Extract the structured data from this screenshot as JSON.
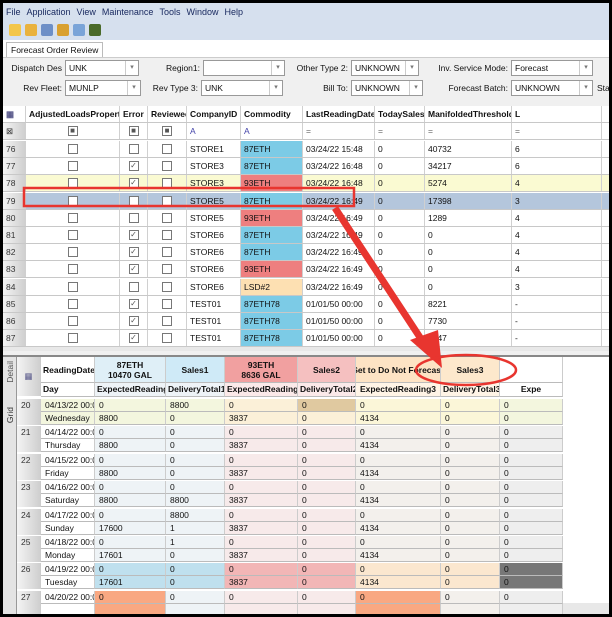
{
  "menu": [
    "File",
    "Application",
    "View",
    "Maintenance",
    "Tools",
    "Window",
    "Help"
  ],
  "toolbar_icons": [
    "new-icon",
    "open-icon",
    "save-icon",
    "export-icon",
    "refresh-icon",
    "exit-icon"
  ],
  "tab": "Forecast Order Review",
  "filters": {
    "row1": [
      {
        "label": "Dispatch Des",
        "value": "UNK"
      },
      {
        "label": "Region1:",
        "value": ""
      },
      {
        "label": "Other Type 2:",
        "value": "UNKNOWN"
      },
      {
        "label": "Inv. Service Mode:",
        "value": "Forecast"
      }
    ],
    "row2": [
      {
        "label": "Rev Fleet:",
        "value": "MUNLP"
      },
      {
        "label": "Rev Type 3:",
        "value": "UNK"
      },
      {
        "label": "Bill To:",
        "value": "UNKNOWN"
      },
      {
        "label": "Forecast Batch:",
        "value": "UNKNOWN"
      },
      {
        "label": "Sta",
        "value": ""
      }
    ]
  },
  "top_grid": {
    "columns": [
      "AdjustedLoadsProperty",
      "Error",
      "Reviewed",
      "CompanyID",
      "Commodity",
      "LastReadingDate",
      "TodaySales",
      "ManifoldedThreshold",
      "L"
    ],
    "rows": [
      {
        "n": "76",
        "error": false,
        "company": "STORE1",
        "commodity": "87ETH",
        "color": "blue",
        "date": "03/24/22 15:48",
        "sales": "0",
        "threshold": "40732",
        "l": "6"
      },
      {
        "n": "77",
        "error": true,
        "company": "STORE3",
        "commodity": "87ETH",
        "color": "blue",
        "date": "03/24/22 16:48",
        "sales": "0",
        "threshold": "34217",
        "l": "6"
      },
      {
        "n": "78",
        "error": true,
        "company": "STORE3",
        "commodity": "93ETH",
        "color": "red",
        "date": "03/24/22 16:48",
        "sales": "0",
        "threshold": "5274",
        "l": "4"
      },
      {
        "n": "79",
        "error": false,
        "company": "STORE5",
        "commodity": "87ETH",
        "color": "blue",
        "date": "03/24/22 16:49",
        "sales": "0",
        "threshold": "17398",
        "l": "3",
        "selected": true
      },
      {
        "n": "80",
        "error": false,
        "company": "STORE5",
        "commodity": "93ETH",
        "color": "red",
        "date": "03/24/22 16:49",
        "sales": "0",
        "threshold": "1289",
        "l": "4"
      },
      {
        "n": "81",
        "error": true,
        "company": "STORE6",
        "commodity": "87ETH",
        "color": "blue",
        "date": "03/24/22 16:49",
        "sales": "0",
        "threshold": "0",
        "l": "4"
      },
      {
        "n": "82",
        "error": true,
        "company": "STORE6",
        "commodity": "87ETH",
        "color": "blue",
        "date": "03/24/22 16:49",
        "sales": "0",
        "threshold": "0",
        "l": "4"
      },
      {
        "n": "83",
        "error": true,
        "company": "STORE6",
        "commodity": "93ETH",
        "color": "red",
        "date": "03/24/22 16:49",
        "sales": "0",
        "threshold": "0",
        "l": "4"
      },
      {
        "n": "84",
        "error": false,
        "company": "STORE6",
        "commodity": "LSD#2",
        "color": "orange",
        "date": "03/24/22 16:49",
        "sales": "0",
        "threshold": "0",
        "l": "3"
      },
      {
        "n": "85",
        "error": true,
        "company": "TEST01",
        "commodity": "87ETH78",
        "color": "blue",
        "date": "01/01/50 00:00",
        "sales": "0",
        "threshold": "8221",
        "l": "-"
      },
      {
        "n": "86",
        "error": true,
        "company": "TEST01",
        "commodity": "87ETH78",
        "color": "blue",
        "date": "01/01/50 00:00",
        "sales": "0",
        "threshold": "7730",
        "l": "-"
      },
      {
        "n": "87",
        "error": true,
        "company": "TEST01",
        "commodity": "87ETH78",
        "color": "blue",
        "date": "01/01/50 00:00",
        "sales": "0",
        "threshold": "9247",
        "l": "-"
      }
    ]
  },
  "side_tabs": [
    "Detail",
    "Grid"
  ],
  "bottom_grid": {
    "header1": [
      "ReadingDate",
      "87ETH\n10470 GAL",
      "Sales1",
      "93ETH\n8636 GAL",
      "Sales2",
      "Set to Do Not Forecast",
      "Sales3",
      ""
    ],
    "header2": [
      "Day",
      "ExpectedReading1",
      "DeliveryTotal1",
      "ExpectedReading2",
      "DeliveryTotal2",
      "ExpectedReading3",
      "DeliveryTotal3",
      "Expe"
    ],
    "rows": [
      {
        "n": "20",
        "date": "04/13/22 00:00",
        "day": "Wednesday",
        "a": [
          "0",
          "8800",
          "0",
          "0",
          "0",
          "0",
          "0"
        ],
        "b": [
          "8800",
          "0",
          "3837",
          "0",
          "4134",
          "0",
          "0"
        ]
      },
      {
        "n": "21",
        "date": "04/14/22 00:00",
        "day": "Thursday",
        "a": [
          "0",
          "0",
          "0",
          "0",
          "0",
          "0",
          "0"
        ],
        "b": [
          "8800",
          "0",
          "3837",
          "0",
          "4134",
          "0",
          "0"
        ]
      },
      {
        "n": "22",
        "date": "04/15/22 00:00",
        "day": "Friday",
        "a": [
          "0",
          "0",
          "0",
          "0",
          "0",
          "0",
          "0"
        ],
        "b": [
          "8800",
          "0",
          "3837",
          "0",
          "4134",
          "0",
          "0"
        ]
      },
      {
        "n": "23",
        "date": "04/16/22 00:00",
        "day": "Saturday",
        "a": [
          "0",
          "0",
          "0",
          "0",
          "0",
          "0",
          "0"
        ],
        "b": [
          "8800",
          "8800",
          "3837",
          "0",
          "4134",
          "0",
          "0"
        ]
      },
      {
        "n": "24",
        "date": "04/17/22 00:00",
        "day": "Sunday",
        "a": [
          "0",
          "8800",
          "0",
          "0",
          "0",
          "0",
          "0"
        ],
        "b": [
          "17600",
          "1",
          "3837",
          "0",
          "4134",
          "0",
          "0"
        ]
      },
      {
        "n": "25",
        "date": "04/18/22 00:00",
        "day": "Monday",
        "a": [
          "0",
          "1",
          "0",
          "0",
          "0",
          "0",
          "0"
        ],
        "b": [
          "17601",
          "0",
          "3837",
          "0",
          "4134",
          "0",
          "0"
        ]
      },
      {
        "n": "26",
        "date": "04/19/22 00:00",
        "day": "Tuesday",
        "a": [
          "0",
          "0",
          "0",
          "0",
          "0",
          "0",
          "0"
        ],
        "b": [
          "17601",
          "0",
          "3837",
          "0",
          "4134",
          "0",
          "0"
        ]
      },
      {
        "n": "27",
        "date": "04/20/22 00:00",
        "day": "",
        "a": [
          "0",
          "0",
          "0",
          "0",
          "0",
          "0",
          "0"
        ],
        "b": [
          "",
          "",
          "",
          "",
          "",
          "",
          ""
        ]
      }
    ]
  },
  "colors": {
    "blue": "#7ccbe6",
    "red": "#ee7f7f",
    "orange": "#fde0b2",
    "annotation": "#e8352f",
    "selected": "#b4c6dc"
  }
}
